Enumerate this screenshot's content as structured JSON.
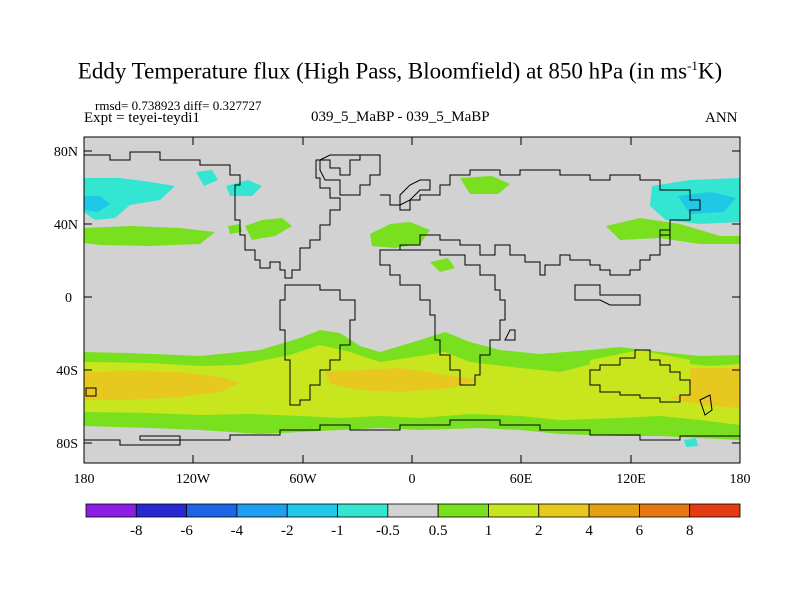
{
  "title": {
    "main": "Eddy Temperature flux (High Pass, Bloomfield) at 850 hPa (in ms",
    "sup": "-1",
    "tail": "K)"
  },
  "stats": {
    "rmsd_diff": "rmsd= 0.738923 diff= 0.327727",
    "expt": "Expt = teyei-teydi1",
    "case": "039_5_MaBP - 039_5_MaBP",
    "period": "ANN"
  },
  "map": {
    "y_ticks": [
      "80N",
      "40N",
      "0",
      "40S",
      "80S"
    ],
    "x_ticks": [
      "180",
      "120W",
      "60W",
      "0",
      "60E",
      "120E",
      "180"
    ],
    "colors": {
      "land_bg": "#d2d2d2",
      "ocean_bg": "#d2d2d2"
    }
  },
  "colorbar": {
    "labels": [
      "-8",
      "-6",
      "-4",
      "-2",
      "-1",
      "-0.5",
      "0.5",
      "1",
      "2",
      "4",
      "6",
      "8"
    ],
    "colors": [
      "#8c1ee6",
      "#2828d2",
      "#1e64e6",
      "#1ea0f0",
      "#1ec8e6",
      "#32e6d2",
      "#d2d2d2",
      "#78e01e",
      "#c8e61e",
      "#e6c81e",
      "#e6a014",
      "#e67814",
      "#e63c14"
    ]
  }
}
